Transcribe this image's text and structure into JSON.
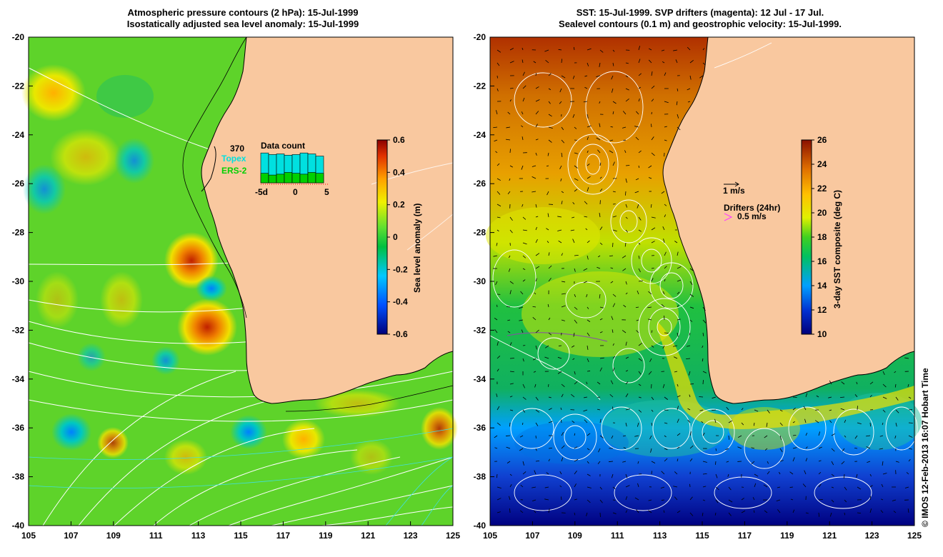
{
  "left_panel": {
    "title_line1": "Atmospheric pressure contours (2 hPa): 15-Jul-1999",
    "title_line2": "Isostatically adjusted sea level anomaly: 15-Jul-1999",
    "colorbar": {
      "label": "Sea level anomaly (m)",
      "ticks": [
        "0.6",
        "0.4",
        "0.2",
        "0",
        "-0.2",
        "-0.4",
        "-0.6"
      ],
      "range": [
        -0.6,
        0.6
      ]
    },
    "inset": {
      "count": "370",
      "title": "Data count",
      "series": [
        {
          "name": "Topex",
          "color": "#00e0e0"
        },
        {
          "name": "ERS-2",
          "color": "#00d000"
        }
      ],
      "x_ticks": [
        "-5d",
        "0",
        "5"
      ],
      "topex_values": [
        0.95,
        0.9,
        0.92,
        0.88,
        0.9,
        0.95,
        0.92,
        0.85
      ],
      "ers_values": [
        0.55,
        0.45,
        0.5,
        0.6,
        0.55,
        0.5,
        0.6,
        0.55
      ]
    }
  },
  "right_panel": {
    "title_line1": "SST: 15-Jul-1999. SVP drifters (magenta): 12 Jul - 17 Jul.",
    "title_line2": "Sealevel contours (0.1 m) and geostrophic velocity: 15-Jul-1999.",
    "colorbar": {
      "label": "3-day SST composite (deg C)",
      "ticks": [
        "26",
        "24",
        "22",
        "20",
        "18",
        "16",
        "14",
        "12",
        "10"
      ],
      "range": [
        10,
        26
      ]
    },
    "legend": {
      "velocity_label": "1 m/s",
      "drifters_label": "Drifters (24hr)",
      "drifters_speed": "0.5 m/s"
    }
  },
  "axes": {
    "x_ticks": [
      "105",
      "107",
      "109",
      "111",
      "113",
      "115",
      "117",
      "119",
      "121",
      "123",
      "125"
    ],
    "y_ticks": [
      "-20",
      "-22",
      "-24",
      "-26",
      "-28",
      "-30",
      "-32",
      "-34",
      "-36",
      "-38",
      "-40"
    ],
    "lon_range": [
      105,
      125
    ],
    "lat_range": [
      -40,
      -20
    ]
  },
  "colors": {
    "land": "#f9c89f",
    "coast": "#000000",
    "drifter": "#ff40ff"
  },
  "copyright": "© IMOS 12-Feb-2013 16:07 Hobart Time"
}
